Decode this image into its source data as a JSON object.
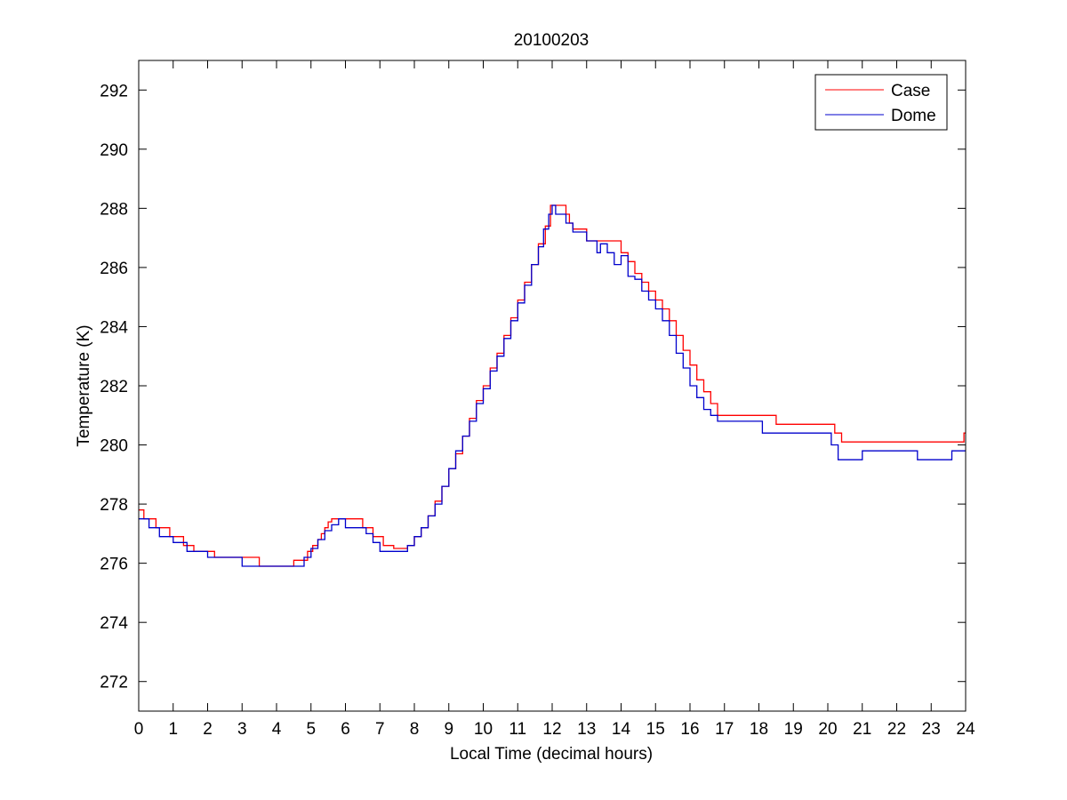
{
  "chart_data": {
    "type": "line",
    "title": "20100203",
    "xlabel": "Local Time (decimal hours)",
    "ylabel": "Temperature (K)",
    "xlim": [
      0,
      24
    ],
    "ylim": [
      271,
      293
    ],
    "xticks": [
      0,
      1,
      2,
      3,
      4,
      5,
      6,
      7,
      8,
      9,
      10,
      11,
      12,
      13,
      14,
      15,
      16,
      17,
      18,
      19,
      20,
      21,
      22,
      23,
      24
    ],
    "yticks": [
      272,
      274,
      276,
      278,
      280,
      282,
      284,
      286,
      288,
      290,
      292
    ],
    "grid": false,
    "legend_position": "top-right",
    "series": [
      {
        "name": "Case",
        "color": "#ff0000",
        "x": [
          0,
          0.15,
          0.5,
          0.9,
          1.3,
          1.6,
          2.0,
          2.2,
          3.5,
          4.5,
          4.9,
          5.05,
          5.2,
          5.3,
          5.4,
          5.5,
          5.6,
          6.5,
          6.8,
          7.1,
          7.4,
          7.8,
          8.0,
          8.2,
          8.4,
          8.6,
          8.8,
          9.0,
          9.2,
          9.4,
          9.6,
          9.8,
          10.0,
          10.2,
          10.4,
          10.6,
          10.8,
          11.0,
          11.2,
          11.4,
          11.6,
          11.8,
          11.95,
          12.2,
          12.4,
          12.5,
          12.6,
          12.8,
          13.0,
          13.2,
          13.6,
          14.0,
          14.2,
          14.4,
          14.6,
          14.8,
          15.0,
          15.2,
          15.4,
          15.6,
          15.8,
          16.0,
          16.2,
          16.4,
          16.6,
          16.8,
          18.5,
          19.5,
          20.2,
          20.4,
          21.0,
          23.95,
          24.0
        ],
        "values": [
          277.8,
          277.5,
          277.2,
          276.9,
          276.6,
          276.4,
          276.4,
          276.2,
          275.9,
          276.1,
          276.4,
          276.6,
          276.8,
          277.0,
          277.2,
          277.4,
          277.5,
          277.2,
          276.9,
          276.6,
          276.5,
          276.6,
          276.9,
          277.2,
          277.6,
          278.1,
          278.6,
          279.2,
          279.7,
          280.3,
          280.9,
          281.5,
          282.0,
          282.6,
          283.1,
          283.7,
          284.3,
          284.9,
          285.5,
          286.1,
          286.8,
          287.4,
          288.1,
          288.1,
          287.8,
          287.5,
          287.3,
          287.3,
          286.9,
          286.9,
          286.9,
          286.5,
          286.2,
          285.8,
          285.5,
          285.2,
          284.9,
          284.6,
          284.2,
          283.7,
          283.2,
          282.7,
          282.2,
          281.8,
          281.4,
          281.0,
          280.7,
          280.7,
          280.4,
          280.1,
          280.1,
          280.4,
          280.4
        ]
      },
      {
        "name": "Dome",
        "color": "#0000cc",
        "x": [
          0,
          0.3,
          0.6,
          1.0,
          1.4,
          2.0,
          2.8,
          3.0,
          4.6,
          4.8,
          5.0,
          5.2,
          5.4,
          5.6,
          5.8,
          6.0,
          6.6,
          6.8,
          7.0,
          7.5,
          7.8,
          8.0,
          8.2,
          8.4,
          8.6,
          8.8,
          9.0,
          9.2,
          9.4,
          9.6,
          9.8,
          10.0,
          10.2,
          10.4,
          10.6,
          10.8,
          11.0,
          11.2,
          11.4,
          11.6,
          11.75,
          11.9,
          12.0,
          12.1,
          12.4,
          12.6,
          13.0,
          13.3,
          13.4,
          13.6,
          13.8,
          14.0,
          14.2,
          14.4,
          14.6,
          14.8,
          15.0,
          15.2,
          15.4,
          15.6,
          15.8,
          16.0,
          16.2,
          16.4,
          16.6,
          16.8,
          18.0,
          18.1,
          20.0,
          20.1,
          20.3,
          21.0,
          22.4,
          22.6,
          23.4,
          23.6,
          24.0
        ],
        "values": [
          277.5,
          277.2,
          276.9,
          276.7,
          276.4,
          276.2,
          276.2,
          275.9,
          275.9,
          276.2,
          276.5,
          276.8,
          277.1,
          277.3,
          277.5,
          277.2,
          277.0,
          276.7,
          276.4,
          276.4,
          276.6,
          276.9,
          277.2,
          277.6,
          278.0,
          278.6,
          279.2,
          279.8,
          280.3,
          280.8,
          281.4,
          281.9,
          282.5,
          283.0,
          283.6,
          284.2,
          284.8,
          285.4,
          286.1,
          286.7,
          287.3,
          287.8,
          288.1,
          287.8,
          287.5,
          287.2,
          286.9,
          286.5,
          286.8,
          286.5,
          286.1,
          286.4,
          285.7,
          285.6,
          285.2,
          284.9,
          284.6,
          284.2,
          283.7,
          283.1,
          282.6,
          282.0,
          281.6,
          281.2,
          281.0,
          280.8,
          280.8,
          280.4,
          280.4,
          280.0,
          279.5,
          279.8,
          279.8,
          279.5,
          279.5,
          279.8,
          279.8
        ]
      }
    ]
  }
}
